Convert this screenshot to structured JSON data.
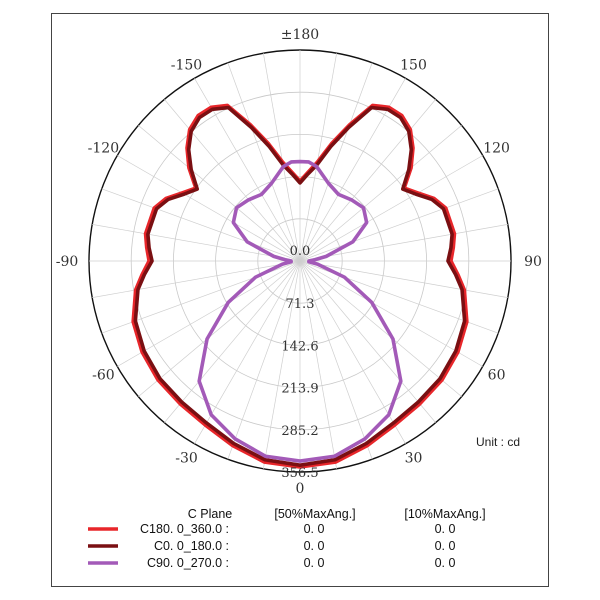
{
  "chart_data": {
    "type": "polar-line",
    "unit_label": "Unit : cd",
    "radial_ticks": [
      "0.0",
      "71.3",
      "142.6",
      "213.9",
      "285.2",
      "356.5"
    ],
    "radial_max": 356.5,
    "angle_labels": [
      {
        "angle": 180,
        "label": "±180"
      },
      {
        "angle": 150,
        "label": "150"
      },
      {
        "angle": 120,
        "label": "120"
      },
      {
        "angle": 90,
        "label": "90"
      },
      {
        "angle": 60,
        "label": "60"
      },
      {
        "angle": 30,
        "label": "30"
      },
      {
        "angle": 0,
        "label": "0"
      },
      {
        "angle": -30,
        "label": "-30"
      },
      {
        "angle": -60,
        "label": "-60"
      },
      {
        "angle": -90,
        "label": "-90"
      },
      {
        "angle": -120,
        "label": "-120"
      },
      {
        "angle": -150,
        "label": "-150"
      }
    ],
    "legend_headers": [
      "C Plane",
      "[50%MaxAng.]",
      "[10%MaxAng.]"
    ],
    "series": [
      {
        "name": "C180. 0_360.0 :",
        "color": "#e8262a",
        "half_max_ang": "0. 0",
        "tenth_max_ang": "0. 0",
        "angles": [
          0,
          10,
          20,
          30,
          40,
          50,
          60,
          70,
          80,
          85,
          90,
          95,
          100,
          110,
          115,
          120,
          125,
          130,
          135,
          140,
          145,
          150,
          155,
          160,
          165,
          170,
          175,
          180
        ],
        "values": [
          348,
          345,
          332,
          320,
          315,
          313,
          308,
          300,
          282,
          268,
          255,
          260,
          265,
          262,
          250,
          230,
          215,
          245,
          270,
          290,
          300,
          300,
          290,
          245,
          205,
          170,
          150,
          135
        ]
      },
      {
        "name": "C0. 0_180.0 :",
        "color": "#7a0f12",
        "half_max_ang": "0. 0",
        "tenth_max_ang": "0. 0",
        "angles": [
          0,
          10,
          20,
          30,
          40,
          50,
          60,
          70,
          80,
          85,
          90,
          95,
          100,
          110,
          115,
          120,
          125,
          130,
          135,
          140,
          145,
          150,
          155,
          160,
          165,
          170,
          175,
          180
        ],
        "values": [
          345,
          341,
          328,
          316,
          311,
          309,
          304,
          296,
          278,
          264,
          250,
          256,
          261,
          258,
          246,
          226,
          212,
          240,
          266,
          286,
          296,
          296,
          286,
          240,
          200,
          165,
          147,
          132
        ]
      },
      {
        "name": "C90. 0_270.0 :",
        "color": "#a35ab8",
        "half_max_ang": "0. 0",
        "tenth_max_ang": "0. 0",
        "angles": [
          0,
          10,
          20,
          30,
          40,
          50,
          60,
          70,
          80,
          85,
          90,
          95,
          100,
          110,
          120,
          130,
          140,
          150,
          160,
          170,
          175,
          180
        ],
        "values": [
          338,
          335,
          320,
          300,
          265,
          205,
          140,
          80,
          30,
          15,
          15,
          25,
          45,
          95,
          130,
          140,
          135,
          130,
          140,
          162,
          168,
          168
        ]
      }
    ]
  }
}
